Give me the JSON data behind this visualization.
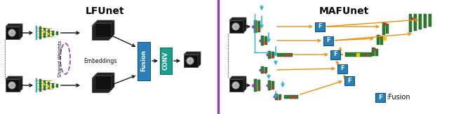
{
  "bg": "#ffffff",
  "black": "#0a0a0a",
  "dark": "#111111",
  "gray_edge": "#555555",
  "green": "#2e7d2e",
  "green_light": "#4a9a4a",
  "blue": "#2980b9",
  "blue_edge": "#1a5276",
  "teal": "#1a9e8e",
  "teal_edge": "#0e6b5e",
  "orange": "#e8900a",
  "cyan": "#22b0d8",
  "purple": "#8e44ad",
  "yellow": "#e8d000",
  "red_sm": "#cc3333",
  "white": "#ffffff",
  "divider": "#8e44ad",
  "title_left": "LFUnet",
  "title_right": "MAFUnet",
  "legend": "Fusion"
}
